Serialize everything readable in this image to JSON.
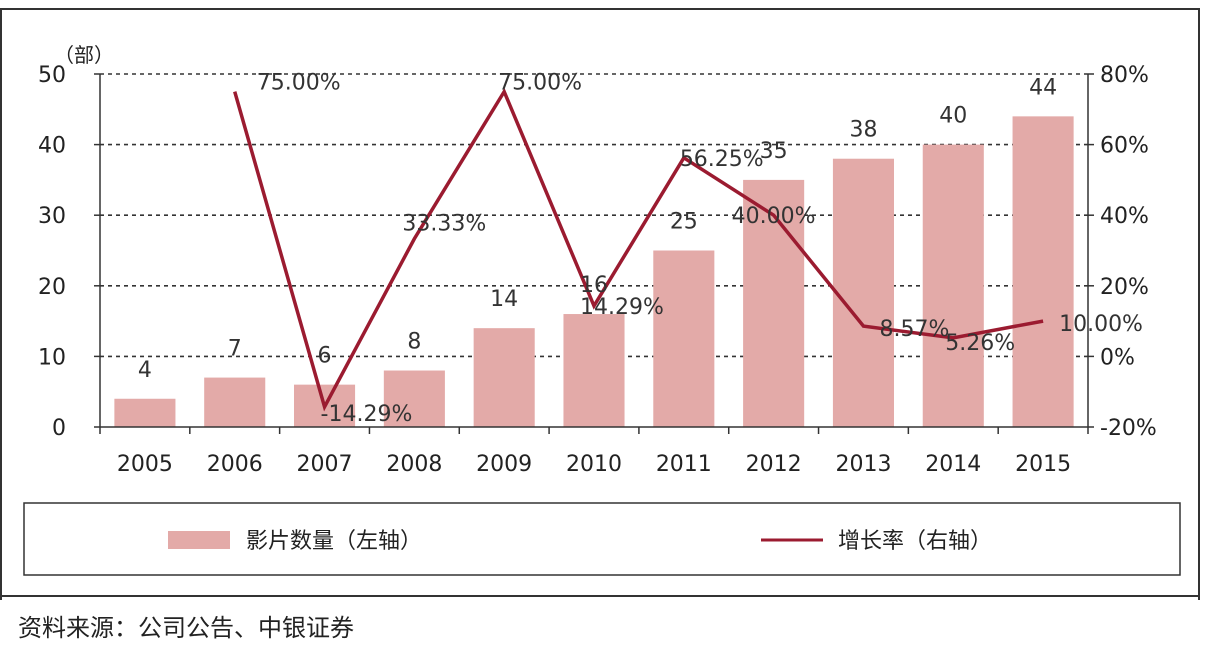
{
  "source": "资料来源：公司公告、中银证券",
  "chart_data": {
    "type": "bar",
    "x": [
      "2005",
      "2006",
      "2007",
      "2008",
      "2009",
      "2010",
      "2011",
      "2012",
      "2013",
      "2014",
      "2015"
    ],
    "left_axis": {
      "unit": "（部）",
      "ylim": [
        0,
        50
      ],
      "ticks": [
        0,
        10,
        20,
        30,
        40,
        50
      ],
      "tick_labels": [
        "0",
        "10",
        "20",
        "30",
        "40",
        "50"
      ]
    },
    "right_axis": {
      "ylim": [
        -20,
        80
      ],
      "ticks": [
        -20,
        0,
        20,
        40,
        60,
        80
      ],
      "tick_labels": [
        "-20%",
        "0%",
        "20%",
        "40%",
        "60%",
        "80%"
      ]
    },
    "grid": "dashed-horizontal",
    "legend_position": "bottom",
    "series": [
      {
        "name": "影片数量（左轴）",
        "type": "bar",
        "axis": "left",
        "color": "#e3aaa8",
        "values": [
          4,
          7,
          6,
          8,
          14,
          16,
          25,
          35,
          38,
          40,
          44
        ],
        "labels": [
          "4",
          "7",
          "6",
          "8",
          "14",
          "16",
          "25",
          "35",
          "38",
          "40",
          "44"
        ]
      },
      {
        "name": "增长率（右轴）",
        "type": "line",
        "axis": "right",
        "color": "#9b1b30",
        "values": [
          null,
          75.0,
          -14.29,
          33.33,
          75.0,
          14.29,
          56.25,
          40.0,
          8.57,
          5.26,
          10.0
        ],
        "labels": [
          "",
          "75.00%",
          "-14.29%",
          "33.33%",
          "75.00%",
          "14.29%",
          "56.25%",
          "40.00%",
          "8.57%",
          "5.26%",
          "10.00%"
        ]
      }
    ]
  }
}
